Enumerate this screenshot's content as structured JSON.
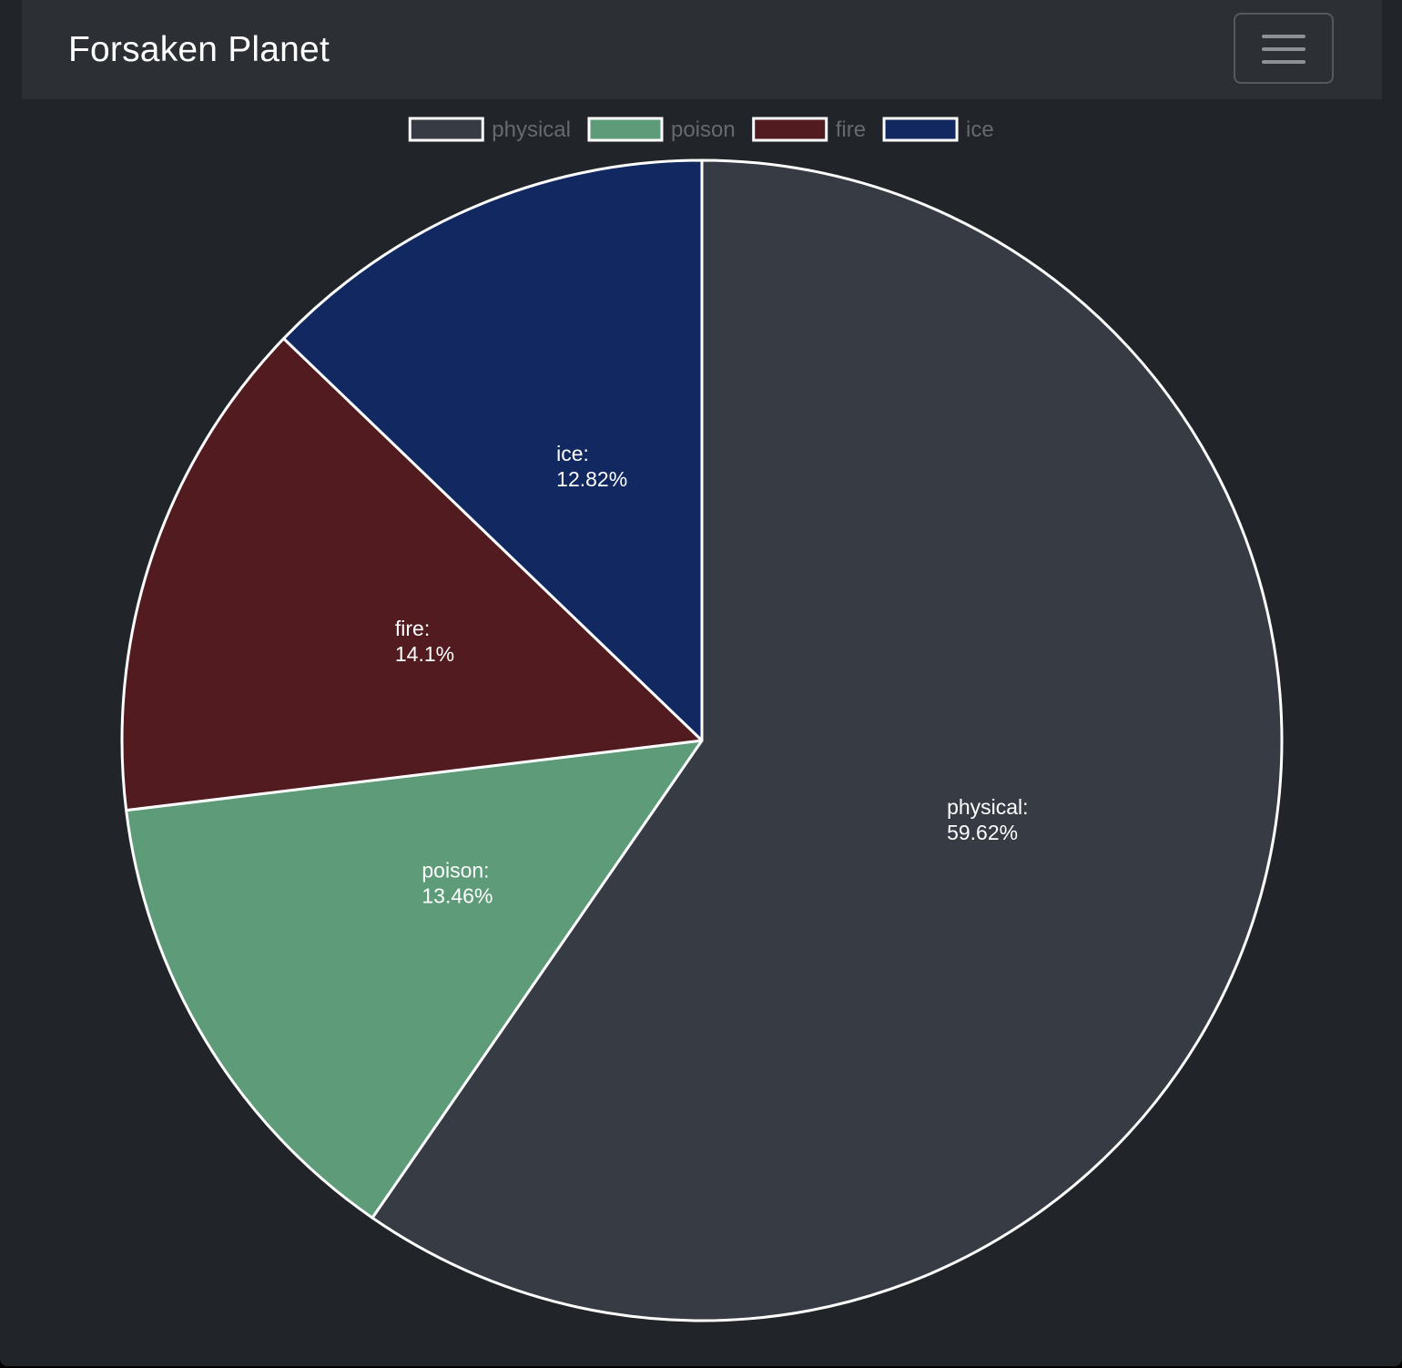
{
  "navbar": {
    "brand": "Forsaken Planet",
    "toggler_icon": "hamburger-menu-icon"
  },
  "chart_data": {
    "type": "pie",
    "categories": [
      "physical",
      "poison",
      "fire",
      "ice"
    ],
    "values": [
      59.62,
      13.46,
      14.1,
      12.82
    ],
    "value_format": "percent",
    "colors": [
      "#373b43",
      "#5e9b78",
      "#521b20",
      "#112860"
    ],
    "slice_border_color": "#ffffff",
    "legend_position": "top",
    "start_angle": "top",
    "direction": "clockwise"
  }
}
